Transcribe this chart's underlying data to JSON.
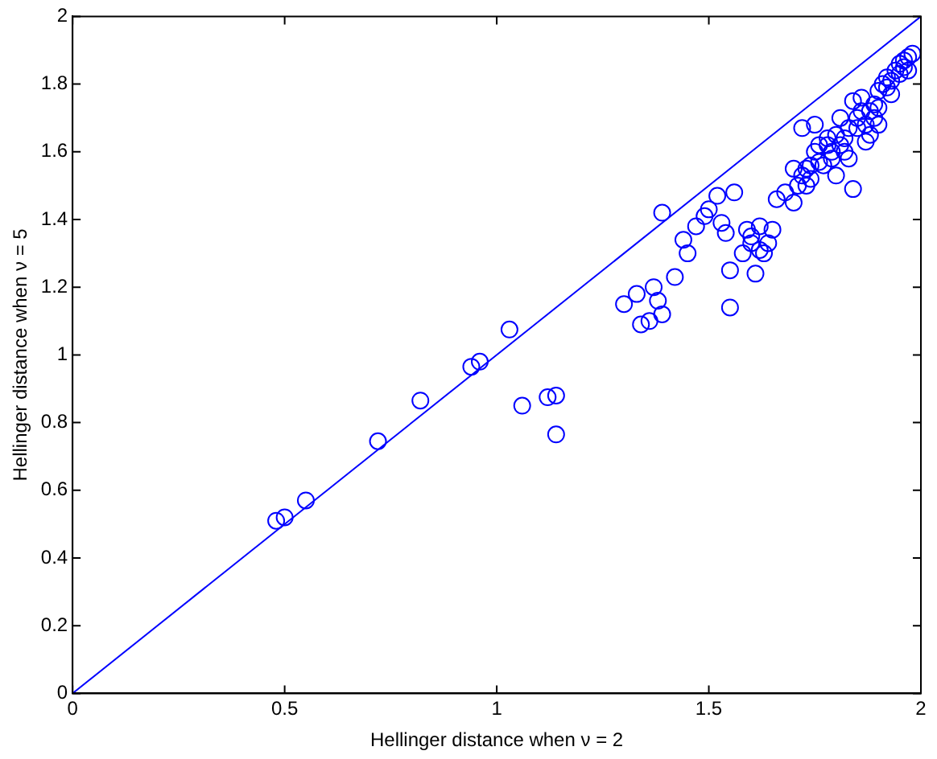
{
  "chart_data": {
    "type": "scatter",
    "xlabel": "Hellinger distance when ν = 2",
    "ylabel": "Hellinger distance when ν = 5",
    "xlim": [
      0,
      2
    ],
    "ylim": [
      0,
      2
    ],
    "xticks": [
      0,
      0.5,
      1,
      1.5,
      2
    ],
    "yticks": [
      0,
      0.2,
      0.4,
      0.6,
      0.8,
      1,
      1.2,
      1.4,
      1.6,
      1.8,
      2
    ],
    "marker": "circle",
    "line_style": "solid",
    "series": [
      {
        "color": "#0000ff",
        "x": [
          0.48,
          0.5,
          0.55,
          0.72,
          0.82,
          0.94,
          0.96,
          1.03,
          1.06,
          1.12,
          1.14,
          1.14,
          1.39,
          1.3,
          1.33,
          1.34,
          1.36,
          1.37,
          1.38,
          1.39,
          1.42,
          1.44,
          1.45,
          1.47,
          1.49,
          1.5,
          1.52,
          1.53,
          1.54,
          1.55,
          1.55,
          1.56,
          1.58,
          1.59,
          1.6,
          1.61,
          1.62,
          1.63,
          1.65,
          1.66,
          1.68,
          1.7,
          1.71,
          1.72,
          1.73,
          1.74,
          1.75,
          1.72,
          1.75,
          1.77,
          1.78,
          1.79,
          1.8,
          1.8,
          1.81,
          1.82,
          1.83,
          1.84,
          1.84,
          1.85,
          1.86,
          1.87,
          1.88,
          1.89,
          1.9,
          1.91,
          1.92,
          1.93,
          1.94,
          1.95,
          1.96,
          1.97,
          1.98,
          1.86,
          1.88,
          1.9,
          1.76,
          1.7,
          1.73,
          1.74,
          1.76,
          1.78,
          1.79,
          1.81,
          1.82,
          1.83,
          1.85,
          1.87,
          1.89,
          1.9,
          1.92,
          1.93,
          1.95,
          1.96,
          1.97,
          1.6,
          1.62,
          1.64
        ],
        "values": [
          0.51,
          0.52,
          0.57,
          0.745,
          0.865,
          0.965,
          0.98,
          1.075,
          0.85,
          0.875,
          0.88,
          0.765,
          1.42,
          1.15,
          1.18,
          1.09,
          1.1,
          1.2,
          1.16,
          1.12,
          1.23,
          1.34,
          1.3,
          1.38,
          1.41,
          1.43,
          1.47,
          1.39,
          1.36,
          1.14,
          1.25,
          1.48,
          1.3,
          1.37,
          1.33,
          1.24,
          1.38,
          1.3,
          1.37,
          1.46,
          1.48,
          1.45,
          1.5,
          1.53,
          1.55,
          1.52,
          1.6,
          1.67,
          1.68,
          1.56,
          1.62,
          1.6,
          1.65,
          1.53,
          1.7,
          1.64,
          1.58,
          1.49,
          1.75,
          1.67,
          1.72,
          1.63,
          1.72,
          1.7,
          1.78,
          1.8,
          1.82,
          1.77,
          1.84,
          1.86,
          1.87,
          1.88,
          1.89,
          1.76,
          1.65,
          1.68,
          1.62,
          1.55,
          1.5,
          1.56,
          1.57,
          1.64,
          1.58,
          1.62,
          1.6,
          1.67,
          1.7,
          1.68,
          1.74,
          1.73,
          1.79,
          1.81,
          1.83,
          1.85,
          1.84,
          1.35,
          1.31,
          1.33
        ]
      },
      {
        "type": "line",
        "color": "#0000ff",
        "marker": "none",
        "x": [
          0,
          2
        ],
        "values": [
          0,
          2
        ]
      }
    ]
  }
}
